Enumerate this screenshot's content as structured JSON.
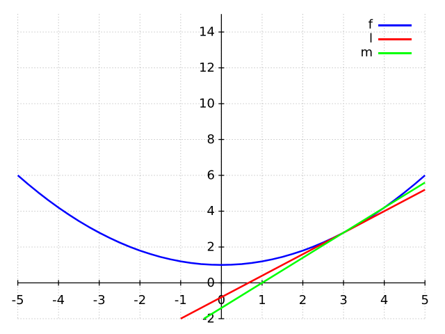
{
  "figure": {
    "background": "#ffffff",
    "axis_color": "#000000",
    "grid_color": "#aaaaaa"
  },
  "chart_data": {
    "type": "line",
    "title": "",
    "xlabel": "",
    "ylabel": "",
    "xlim": [
      -5,
      5
    ],
    "ylim": [
      -2,
      15
    ],
    "x_ticks": [
      -5,
      -4,
      -3,
      -2,
      -1,
      0,
      1,
      2,
      3,
      4,
      5
    ],
    "y_ticks": [
      -2,
      0,
      2,
      4,
      6,
      8,
      10,
      12,
      14
    ],
    "grid": "dotted",
    "axes_style": "zero-centered",
    "legend_position": "top-right",
    "series": [
      {
        "name": "f",
        "color": "#0000ff",
        "type": "curve",
        "points": [
          [
            -5,
            6
          ],
          [
            -4.75,
            5.5125
          ],
          [
            -4.5,
            5.05
          ],
          [
            -4.25,
            4.6125
          ],
          [
            -4,
            4.2
          ],
          [
            -3.75,
            3.8125
          ],
          [
            -3.5,
            3.45
          ],
          [
            -3.25,
            3.1125
          ],
          [
            -3,
            2.8
          ],
          [
            -2.75,
            2.5125
          ],
          [
            -2.5,
            2.25
          ],
          [
            -2.25,
            2.0125
          ],
          [
            -2,
            1.8
          ],
          [
            -1.75,
            1.6125
          ],
          [
            -1.5,
            1.45
          ],
          [
            -1.25,
            1.3125
          ],
          [
            -1,
            1.2
          ],
          [
            -0.75,
            1.1125
          ],
          [
            -0.5,
            1.05
          ],
          [
            -0.25,
            1.0125
          ],
          [
            0,
            1
          ],
          [
            0.25,
            1.0125
          ],
          [
            0.5,
            1.05
          ],
          [
            0.75,
            1.1125
          ],
          [
            1,
            1.2
          ],
          [
            1.25,
            1.3125
          ],
          [
            1.5,
            1.45
          ],
          [
            1.75,
            1.6125
          ],
          [
            2,
            1.8
          ],
          [
            2.25,
            2.0125
          ],
          [
            2.5,
            2.25
          ],
          [
            2.75,
            2.5125
          ],
          [
            3,
            2.8
          ],
          [
            3.25,
            3.1125
          ],
          [
            3.5,
            3.45
          ],
          [
            3.75,
            3.8125
          ],
          [
            4,
            4.2
          ],
          [
            4.25,
            4.6125
          ],
          [
            4.5,
            5.05
          ],
          [
            4.75,
            5.5125
          ],
          [
            5,
            6
          ]
        ]
      },
      {
        "name": "l",
        "color": "#ff0000",
        "type": "line",
        "points": [
          [
            -1,
            -2
          ],
          [
            5,
            5.2
          ]
        ]
      },
      {
        "name": "m",
        "color": "#00ff00",
        "type": "line",
        "points": [
          [
            -0.4286,
            -2
          ],
          [
            5,
            5.6
          ]
        ]
      }
    ]
  }
}
